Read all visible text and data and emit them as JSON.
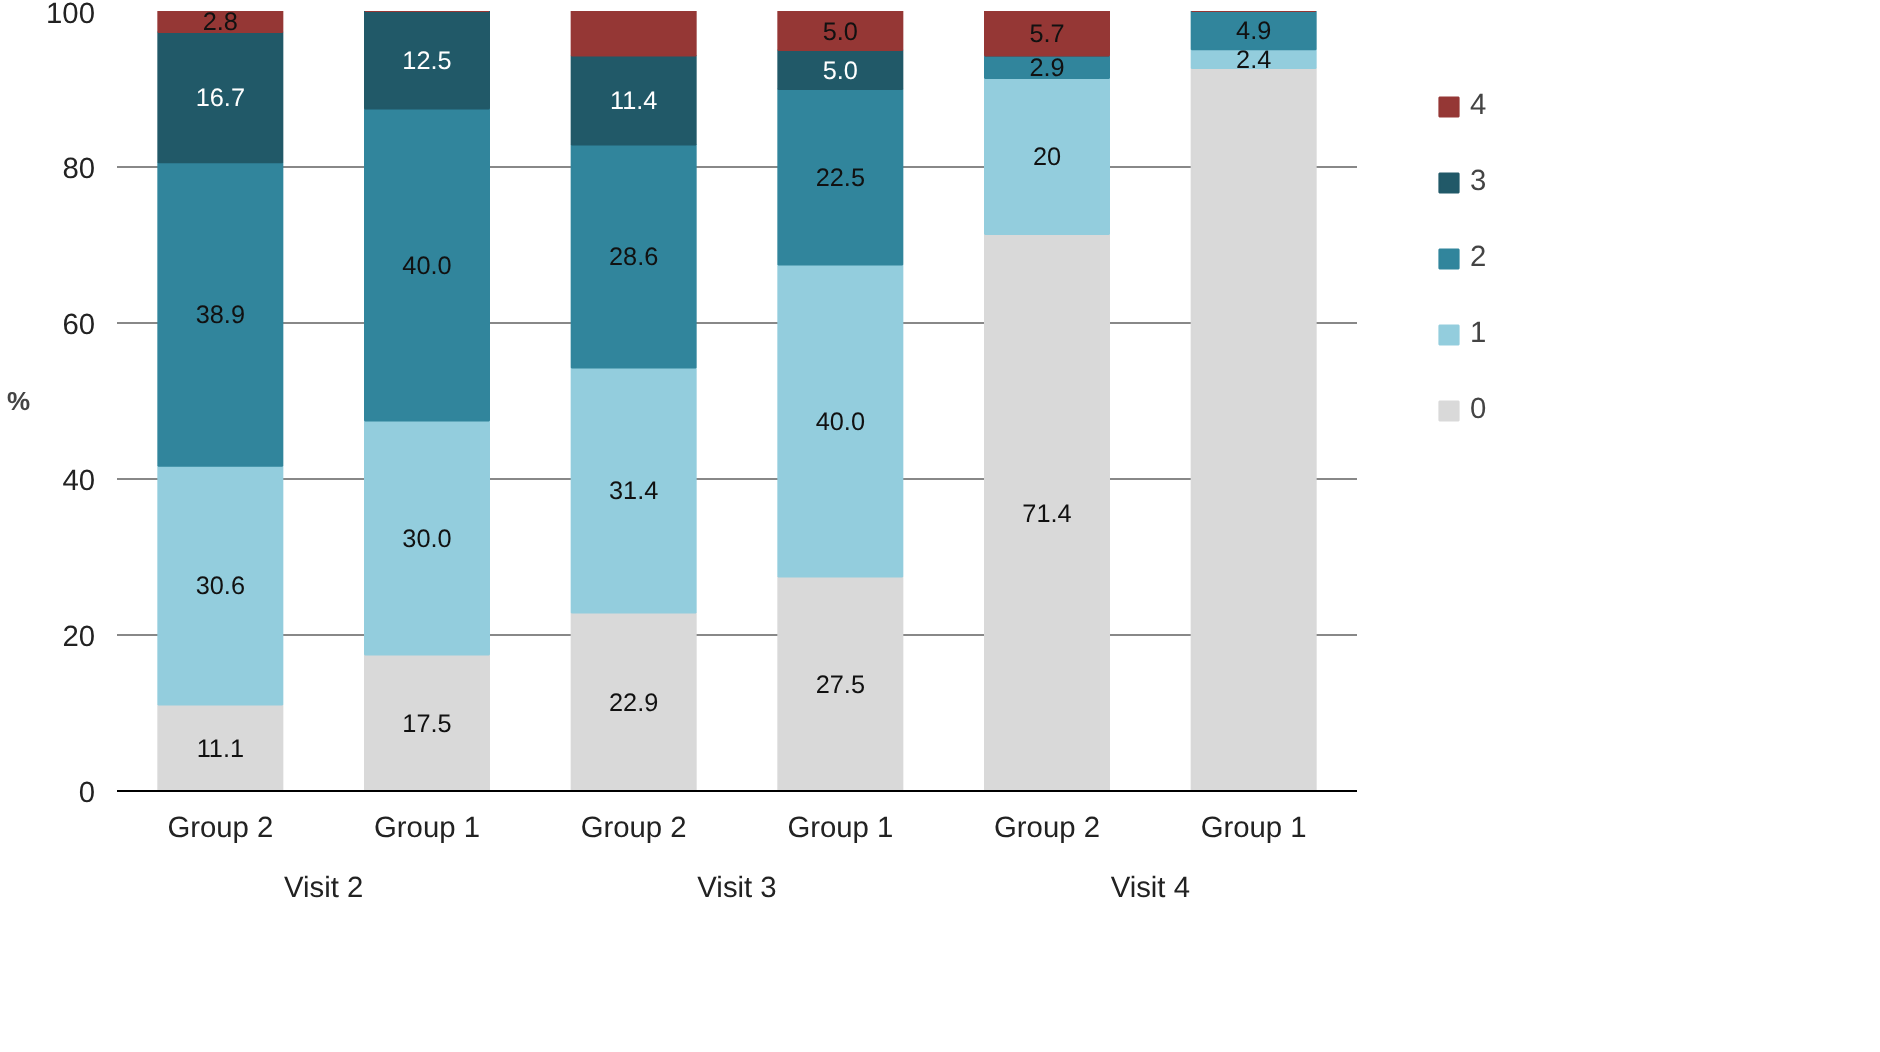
{
  "chart_data": {
    "type": "bar",
    "stacked": true,
    "categories": [
      "Group 2",
      "Group 1",
      "Group 2",
      "Group 1",
      "Group 2",
      "Group 1"
    ],
    "ylabel": "%",
    "ylim": [
      0,
      100
    ],
    "yticks": [
      0,
      20,
      40,
      60,
      80,
      100
    ],
    "grid": "y",
    "legend": "right",
    "annotations": [
      "Visit 2",
      "Visit 3",
      "Visit 4"
    ],
    "series": [
      {
        "name": "0",
        "color": "#d9d9d9",
        "values": [
          11.1,
          17.5,
          22.9,
          27.5,
          71.4,
          92.7
        ],
        "value_labels": [
          "11.1",
          "17.5",
          "22.9",
          "27.5",
          "71.4",
          null
        ]
      },
      {
        "name": "1",
        "color": "#93cddd",
        "values": [
          30.6,
          30.0,
          31.4,
          40.0,
          20,
          2.4
        ],
        "value_labels": [
          "30.6",
          "30.0",
          "31.4",
          "40.0",
          "20",
          "2.4"
        ]
      },
      {
        "name": "2",
        "color": "#31859c",
        "values": [
          38.9,
          40.0,
          28.6,
          22.5,
          2.9,
          4.9
        ],
        "value_labels": [
          "38.9",
          "40.0",
          "28.6",
          "22.5",
          "2.9",
          "4.9"
        ]
      },
      {
        "name": "3",
        "color": "#215968",
        "values": [
          16.7,
          12.5,
          11.4,
          5.0,
          0,
          0
        ],
        "value_labels": [
          "16.7",
          "12.5",
          "11.4",
          "5.0",
          null,
          null
        ]
      },
      {
        "name": "4",
        "color": "#953735",
        "values": [
          2.8,
          0,
          5.7,
          5.0,
          5.7,
          0
        ],
        "value_labels": [
          "2.8",
          null,
          null,
          "5.0",
          "5.7",
          null
        ]
      }
    ]
  }
}
